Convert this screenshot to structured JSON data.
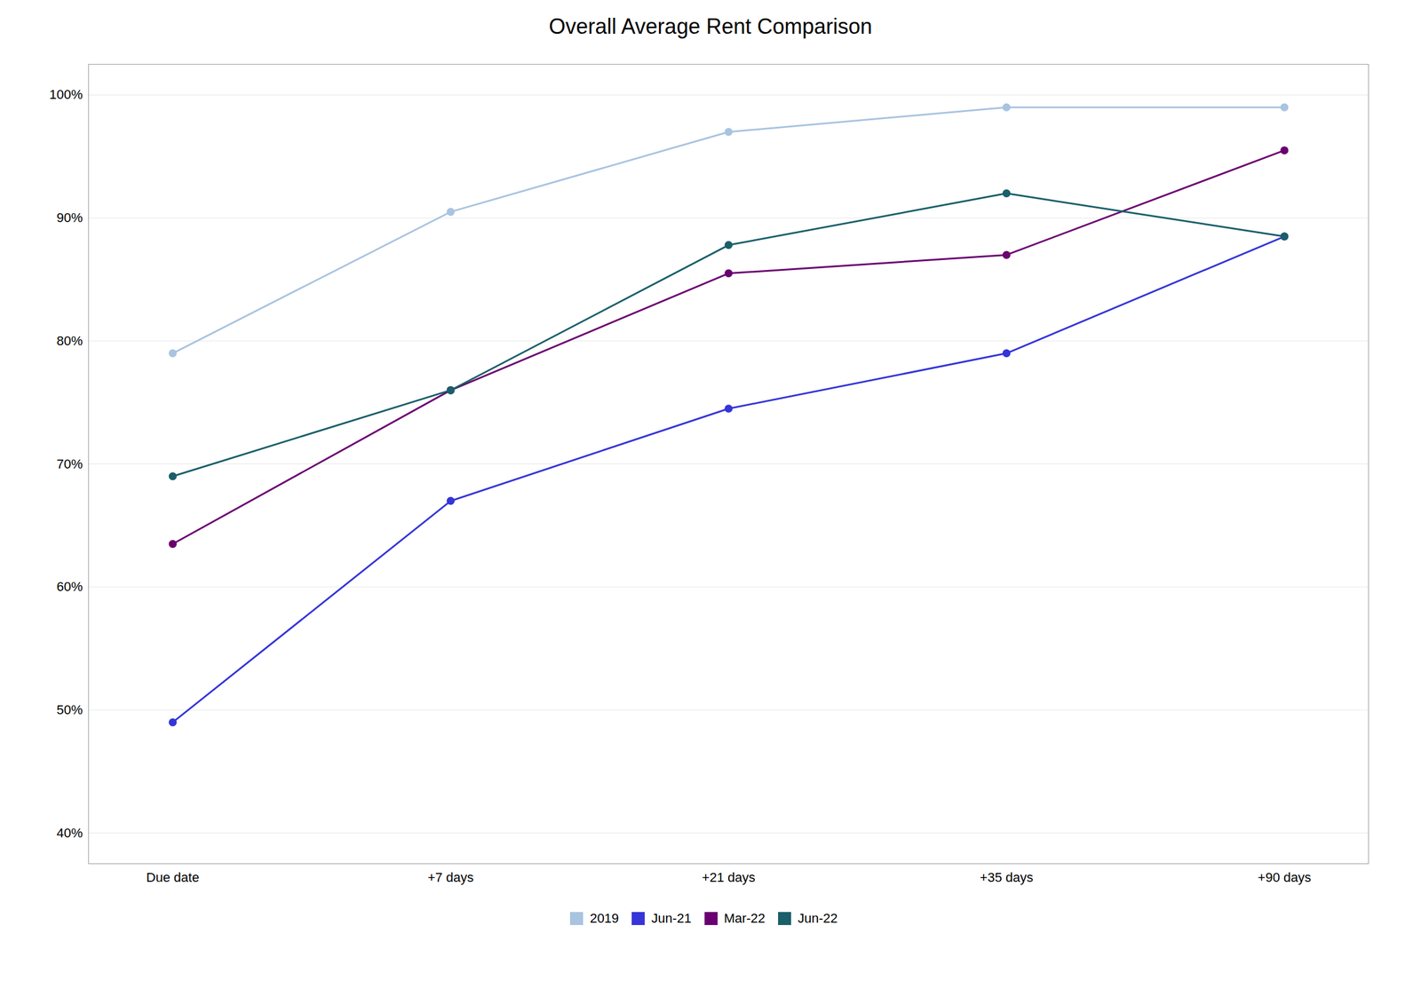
{
  "chart_data": {
    "type": "line",
    "title": "Overall Average Rent Comparison",
    "categories": [
      "Due date",
      "+7 days",
      "+21 days",
      "+35 days",
      "+90 days"
    ],
    "series": [
      {
        "name": "2019",
        "color": "#a8c4e0",
        "marker": "circle",
        "values": [
          0.79,
          0.905,
          0.97,
          0.99,
          0.99
        ]
      },
      {
        "name": "Jun-21",
        "color": "#3535d8",
        "marker": "circle",
        "values": [
          0.49,
          0.67,
          0.745,
          0.79,
          0.885
        ]
      },
      {
        "name": "Mar-22",
        "color": "#6a0070",
        "marker": "circle",
        "values": [
          0.635,
          0.76,
          0.855,
          0.87,
          0.955
        ]
      },
      {
        "name": "Jun-22",
        "color": "#1a5f6a",
        "marker": "circle",
        "values": [
          0.69,
          0.76,
          0.878,
          0.92,
          0.885
        ]
      }
    ],
    "ylim": [
      0.375,
      1.025
    ],
    "yticks": [
      {
        "value": 0.4,
        "label": "40%"
      },
      {
        "value": 0.5,
        "label": "50%"
      },
      {
        "value": 0.6,
        "label": "60%"
      },
      {
        "value": 0.7,
        "label": "70%"
      },
      {
        "value": 0.8,
        "label": "80%"
      },
      {
        "value": 0.9,
        "label": "90%"
      },
      {
        "value": 1.0,
        "label": "100%"
      }
    ],
    "grid": true,
    "legend": "bottom"
  }
}
